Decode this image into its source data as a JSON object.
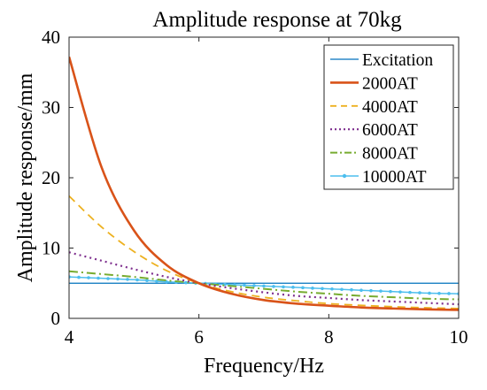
{
  "chart_data": {
    "type": "line",
    "title": "Amplitude response at 70kg",
    "xlabel": "Frequency/Hz",
    "ylabel": "Amplitude response/mm",
    "xlim": [
      4,
      10
    ],
    "ylim": [
      0,
      40
    ],
    "x_ticks": [
      "4",
      "6",
      "8",
      "10"
    ],
    "y_ticks": [
      "0",
      "10",
      "20",
      "30",
      "40"
    ],
    "x": [
      4,
      4.5,
      5,
      5.5,
      6,
      6.5,
      7,
      7.5,
      8,
      8.5,
      9,
      9.5,
      10
    ],
    "legend_position": "top-right",
    "grid": false,
    "series": [
      {
        "name": "Excitation",
        "color": "#0072BD",
        "dash": "solid",
        "width": 1.2,
        "marker": "none",
        "values": [
          5,
          5,
          5,
          5,
          5,
          5,
          5,
          5,
          5,
          5,
          5,
          5,
          5
        ]
      },
      {
        "name": "2000AT",
        "color": "#D95319",
        "dash": "solid",
        "width": 2.6,
        "marker": "none",
        "values": [
          37.2,
          21.5,
          12.5,
          7.6,
          5.0,
          3.5,
          2.6,
          2.1,
          1.8,
          1.55,
          1.4,
          1.28,
          1.2
        ]
      },
      {
        "name": "4000AT",
        "color": "#EDB120",
        "dash": "dashed",
        "width": 1.8,
        "marker": "none",
        "values": [
          17.4,
          13.0,
          9.5,
          6.8,
          5.0,
          3.8,
          3.0,
          2.5,
          2.1,
          1.85,
          1.65,
          1.5,
          1.4
        ]
      },
      {
        "name": "6000AT",
        "color": "#7E2F8E",
        "dash": "dotted",
        "width": 2.2,
        "marker": "none",
        "values": [
          9.4,
          8.2,
          7.0,
          5.9,
          5.0,
          4.3,
          3.7,
          3.2,
          2.9,
          2.6,
          2.4,
          2.2,
          2.0
        ]
      },
      {
        "name": "8000AT",
        "color": "#77AC30",
        "dash": "dashdot",
        "width": 2.0,
        "marker": "none",
        "values": [
          6.7,
          6.3,
          5.9,
          5.4,
          5.0,
          4.6,
          4.2,
          3.8,
          3.5,
          3.2,
          3.0,
          2.8,
          2.7
        ]
      },
      {
        "name": "10000AT",
        "color": "#4DBEEE",
        "dash": "solid",
        "width": 1.5,
        "marker": "dot",
        "values": [
          5.9,
          5.7,
          5.5,
          5.2,
          5.0,
          4.8,
          4.6,
          4.4,
          4.2,
          4.0,
          3.8,
          3.6,
          3.5
        ]
      }
    ]
  }
}
